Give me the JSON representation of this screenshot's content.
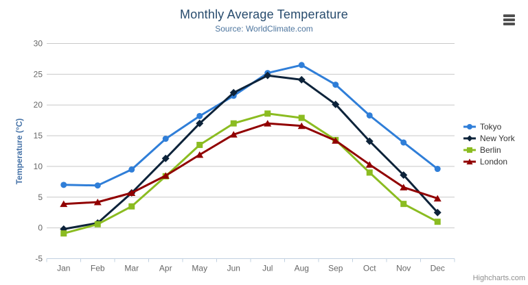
{
  "header": {
    "title": "Monthly Average Temperature",
    "subtitle": "Source: WorldClimate.com"
  },
  "context_menu": {
    "icon": "hamburger-menu-icon"
  },
  "credits": {
    "label": "Highcharts.com"
  },
  "chart_data": {
    "type": "line",
    "title": "Monthly Average Temperature",
    "subtitle": "Source: WorldClimate.com",
    "categories": [
      "Jan",
      "Feb",
      "Mar",
      "Apr",
      "May",
      "Jun",
      "Jul",
      "Aug",
      "Sep",
      "Oct",
      "Nov",
      "Dec"
    ],
    "xlabel": "",
    "ylabel": "Temperature (°C)",
    "ylim": [
      -5,
      30
    ],
    "yticks": [
      -5,
      0,
      5,
      10,
      15,
      20,
      25,
      30
    ],
    "grid": true,
    "legend_position": "right",
    "series": [
      {
        "name": "Tokyo",
        "color": "#2f7ed8",
        "marker": "circle",
        "values": [
          7.0,
          6.9,
          9.5,
          14.5,
          18.2,
          21.5,
          25.2,
          26.5,
          23.3,
          18.3,
          13.9,
          9.6
        ]
      },
      {
        "name": "New York",
        "color": "#0d233a",
        "marker": "diamond",
        "values": [
          -0.2,
          0.8,
          5.7,
          11.3,
          17.0,
          22.0,
          24.8,
          24.1,
          20.1,
          14.1,
          8.6,
          2.5
        ]
      },
      {
        "name": "Berlin",
        "color": "#8bbc21",
        "marker": "square",
        "values": [
          -0.9,
          0.6,
          3.5,
          8.4,
          13.5,
          17.0,
          18.6,
          17.9,
          14.3,
          9.0,
          3.9,
          1.0
        ]
      },
      {
        "name": "London",
        "color": "#910000",
        "marker": "triangle",
        "values": [
          3.9,
          4.2,
          5.7,
          8.5,
          11.9,
          15.2,
          17.0,
          16.6,
          14.2,
          10.3,
          6.6,
          4.8
        ]
      }
    ]
  },
  "colors": {
    "grid_line": "#c8c8c8",
    "axis_line": "#c0d0e0",
    "axis_label": "#666666",
    "title": "#274b6d",
    "subtitle": "#4d759e",
    "y_axis_title": "#4572a7",
    "legend_text": "#333333",
    "credits": "#909090"
  }
}
